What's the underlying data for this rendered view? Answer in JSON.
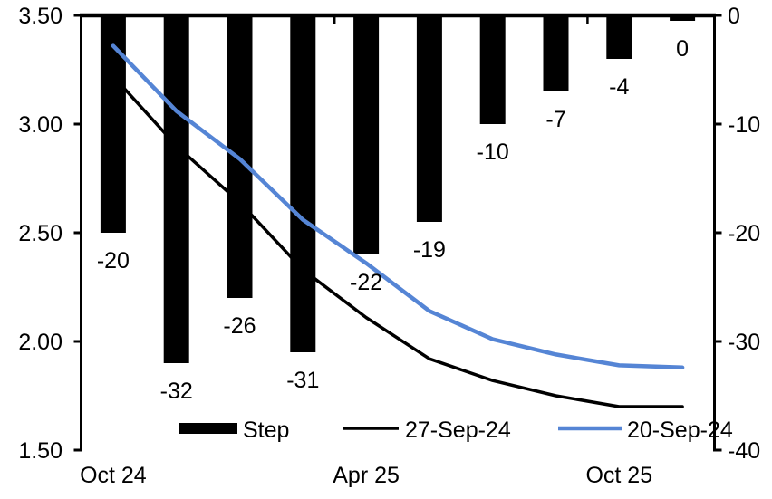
{
  "chart_data": {
    "type": "combo_bar_line",
    "title": "",
    "n_categories": 10,
    "bar_series": {
      "name": "Step",
      "axis": "right",
      "color": "#000000",
      "values": [
        -20,
        -32,
        -26,
        -31,
        -22,
        -19,
        -10,
        -7,
        -4,
        0
      ],
      "data_labels": [
        "-20",
        "-32",
        "-26",
        "-31",
        "-22",
        "-19",
        "-10",
        "-7",
        "-4",
        "0"
      ]
    },
    "line_series": [
      {
        "name": "27-Sep-24",
        "axis": "left",
        "color": "#000000",
        "stroke_width": 3.5,
        "values": [
          3.22,
          2.9,
          2.64,
          2.33,
          2.11,
          1.92,
          1.82,
          1.75,
          1.7,
          1.7
        ]
      },
      {
        "name": "20-Sep-24",
        "axis": "left",
        "color": "#5585D5",
        "stroke_width": 4.5,
        "values": [
          3.36,
          3.06,
          2.84,
          2.56,
          2.36,
          2.14,
          2.01,
          1.94,
          1.89,
          1.88
        ]
      }
    ],
    "left_axis": {
      "min": 1.5,
      "max": 3.5,
      "tick_labels": [
        "3.50",
        "3.00",
        "2.50",
        "2.00",
        "1.50"
      ]
    },
    "right_axis": {
      "min": -40,
      "max": 0,
      "tick_labels": [
        "0",
        "-10",
        "-20",
        "-30",
        "-40"
      ]
    },
    "x_axis": {
      "tick_labels": [
        {
          "text": "Oct 24",
          "category_index": 0
        },
        {
          "text": "Apr 25",
          "category_index": 4
        },
        {
          "text": "Oct 25",
          "category_index": 8
        }
      ]
    },
    "legend": {
      "position": "bottom",
      "items": [
        {
          "label": "Step",
          "swatch": "bar",
          "color": "#000000"
        },
        {
          "label": "27-Sep-24",
          "swatch": "line",
          "color": "#000000"
        },
        {
          "label": "20-Sep-24",
          "swatch": "line",
          "color": "#5585D5"
        }
      ]
    },
    "grid": false,
    "background": "#FFFFFF"
  }
}
